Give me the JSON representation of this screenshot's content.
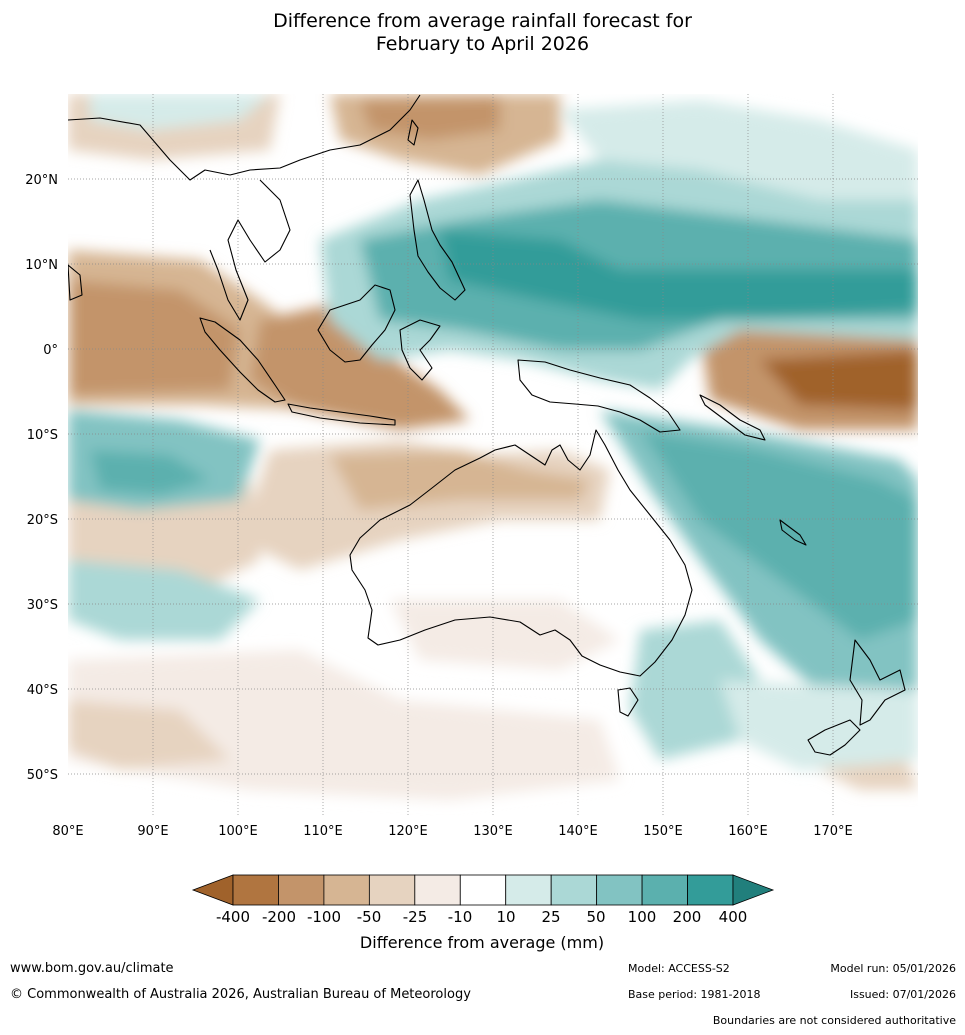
{
  "title": {
    "line1": "Difference from average rainfall forecast for",
    "line2": "February to April 2026"
  },
  "map": {
    "latitude_labels": [
      "20°N",
      "10°N",
      "0°",
      "10°S",
      "20°S",
      "30°S",
      "40°S",
      "50°S"
    ],
    "longitude_labels": [
      "80°E",
      "90°E",
      "100°E",
      "110°E",
      "120°E",
      "130°E",
      "140°E",
      "150°E",
      "160°E",
      "170°E"
    ],
    "extent": {
      "lon_min": 80,
      "lon_max": 180,
      "lat_min": -55,
      "lat_max": 30
    }
  },
  "legend": {
    "title": "Difference from average (mm)",
    "tick_labels": [
      "-400",
      "-200",
      "-100",
      "-50",
      "-25",
      "-10",
      "10",
      "25",
      "50",
      "100",
      "200",
      "400"
    ],
    "colors": [
      "#a0622b",
      "#b07540",
      "#c3946a",
      "#d6b593",
      "#e6d3c0",
      "#f4ebe5",
      "#ffffff",
      "#d5ebe9",
      "#abd8d6",
      "#82c3c2",
      "#5bb0ae",
      "#339c99",
      "#217f7c"
    ]
  },
  "footer": {
    "website": "www.bom.gov.au/climate",
    "copyright": "© Commonwealth of Australia 2026, Australian Bureau of Meteorology",
    "model": "Model: ACCESS-S2",
    "base_period": "Base period: 1981-2018",
    "model_run": "Model run: 05/01/2026",
    "issued": "Issued: 07/01/2026",
    "disclaimer": "Boundaries are not considered authoritative"
  }
}
